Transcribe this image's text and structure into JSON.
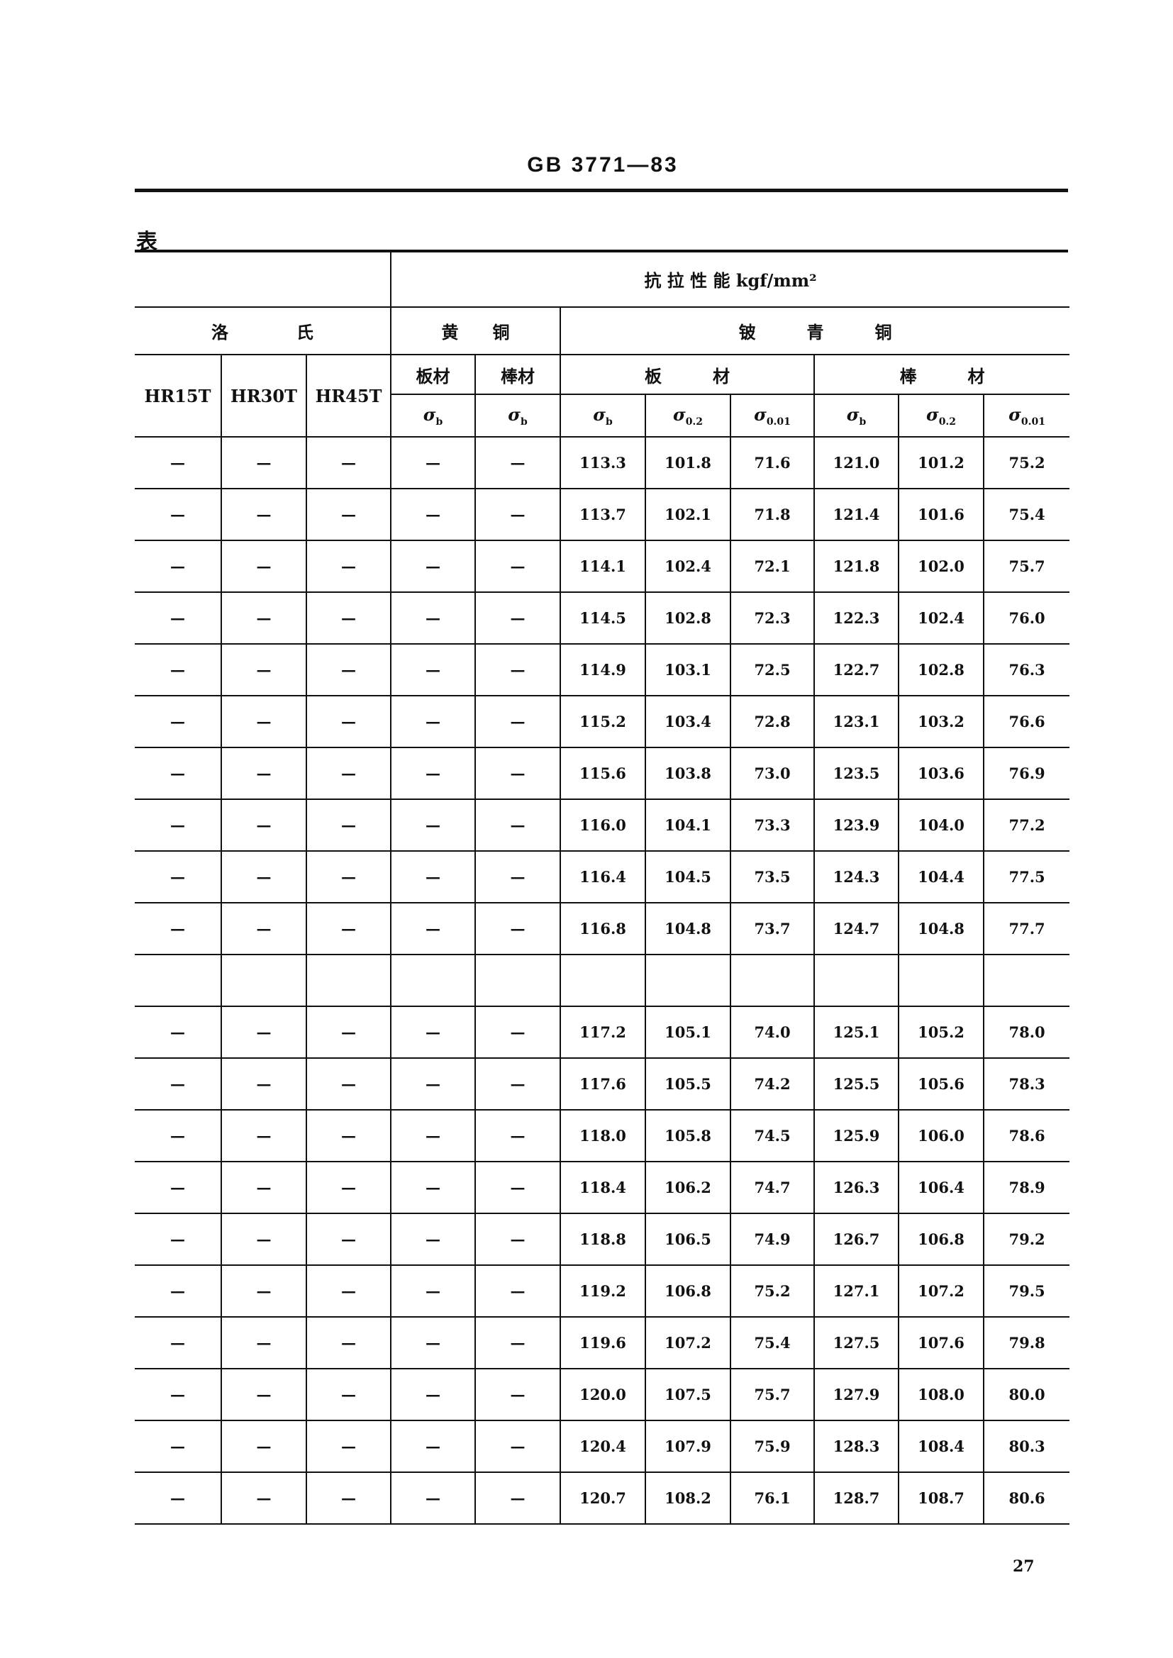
{
  "document_id": "GB 3771—83",
  "table_label": "表",
  "header": {
    "tensile": "抗 拉 性 能 kgf/mm²",
    "rockwell": "洛　　　　氏",
    "brass": "黄　　铜",
    "beryllium_bronze": "铍　　　青　　　铜",
    "hardness_cols": [
      "HR15T",
      "HR30T",
      "HR45T"
    ],
    "brass_forms": [
      "板材",
      "棒材"
    ],
    "bronze_forms": [
      "板　　　材",
      "棒　　　材"
    ],
    "stress_cols": [
      {
        "sym": "σ",
        "sub": "b"
      },
      {
        "sym": "σ",
        "sub": "b"
      },
      {
        "sym": "σ",
        "sub": "b"
      },
      {
        "sym": "σ",
        "sub": "0.2"
      },
      {
        "sym": "σ",
        "sub": "0.01"
      },
      {
        "sym": "σ",
        "sub": "b"
      },
      {
        "sym": "σ",
        "sub": "0.2"
      },
      {
        "sym": "σ",
        "sub": "0.01"
      }
    ]
  },
  "rows": [
    [
      "—",
      "—",
      "—",
      "—",
      "—",
      "113.3",
      "101.8",
      "71.6",
      "121.0",
      "101.2",
      "75.2"
    ],
    [
      "—",
      "—",
      "—",
      "—",
      "—",
      "113.7",
      "102.1",
      "71.8",
      "121.4",
      "101.6",
      "75.4"
    ],
    [
      "—",
      "—",
      "—",
      "—",
      "—",
      "114.1",
      "102.4",
      "72.1",
      "121.8",
      "102.0",
      "75.7"
    ],
    [
      "—",
      "—",
      "—",
      "—",
      "—",
      "114.5",
      "102.8",
      "72.3",
      "122.3",
      "102.4",
      "76.0"
    ],
    [
      "—",
      "—",
      "—",
      "—",
      "—",
      "114.9",
      "103.1",
      "72.5",
      "122.7",
      "102.8",
      "76.3"
    ],
    [
      "—",
      "—",
      "—",
      "—",
      "—",
      "115.2",
      "103.4",
      "72.8",
      "123.1",
      "103.2",
      "76.6"
    ],
    [
      "—",
      "—",
      "—",
      "—",
      "—",
      "115.6",
      "103.8",
      "73.0",
      "123.5",
      "103.6",
      "76.9"
    ],
    [
      "—",
      "—",
      "—",
      "—",
      "—",
      "116.0",
      "104.1",
      "73.3",
      "123.9",
      "104.0",
      "77.2"
    ],
    [
      "—",
      "—",
      "—",
      "—",
      "—",
      "116.4",
      "104.5",
      "73.5",
      "124.3",
      "104.4",
      "77.5"
    ],
    [
      "—",
      "—",
      "—",
      "—",
      "—",
      "116.8",
      "104.8",
      "73.7",
      "124.7",
      "104.8",
      "77.7"
    ],
    [
      "",
      "",
      "",
      "",
      "",
      "",
      "",
      "",
      "",
      "",
      ""
    ],
    [
      "—",
      "—",
      "—",
      "—",
      "—",
      "117.2",
      "105.1",
      "74.0",
      "125.1",
      "105.2",
      "78.0"
    ],
    [
      "—",
      "—",
      "—",
      "—",
      "—",
      "117.6",
      "105.5",
      "74.2",
      "125.5",
      "105.6",
      "78.3"
    ],
    [
      "—",
      "—",
      "—",
      "—",
      "—",
      "118.0",
      "105.8",
      "74.5",
      "125.9",
      "106.0",
      "78.6"
    ],
    [
      "—",
      "—",
      "—",
      "—",
      "—",
      "118.4",
      "106.2",
      "74.7",
      "126.3",
      "106.4",
      "78.9"
    ],
    [
      "—",
      "—",
      "—",
      "—",
      "—",
      "118.8",
      "106.5",
      "74.9",
      "126.7",
      "106.8",
      "79.2"
    ],
    [
      "—",
      "—",
      "—",
      "—",
      "—",
      "119.2",
      "106.8",
      "75.2",
      "127.1",
      "107.2",
      "79.5"
    ],
    [
      "—",
      "—",
      "—",
      "—",
      "—",
      "119.6",
      "107.2",
      "75.4",
      "127.5",
      "107.6",
      "79.8"
    ],
    [
      "—",
      "—",
      "—",
      "—",
      "—",
      "120.0",
      "107.5",
      "75.7",
      "127.9",
      "108.0",
      "80.0"
    ],
    [
      "—",
      "—",
      "—",
      "—",
      "—",
      "120.4",
      "107.9",
      "75.9",
      "128.3",
      "108.4",
      "80.3"
    ],
    [
      "—",
      "—",
      "—",
      "—",
      "—",
      "120.7",
      "108.2",
      "76.1",
      "128.7",
      "108.7",
      "80.6"
    ]
  ],
  "page_number": "27"
}
